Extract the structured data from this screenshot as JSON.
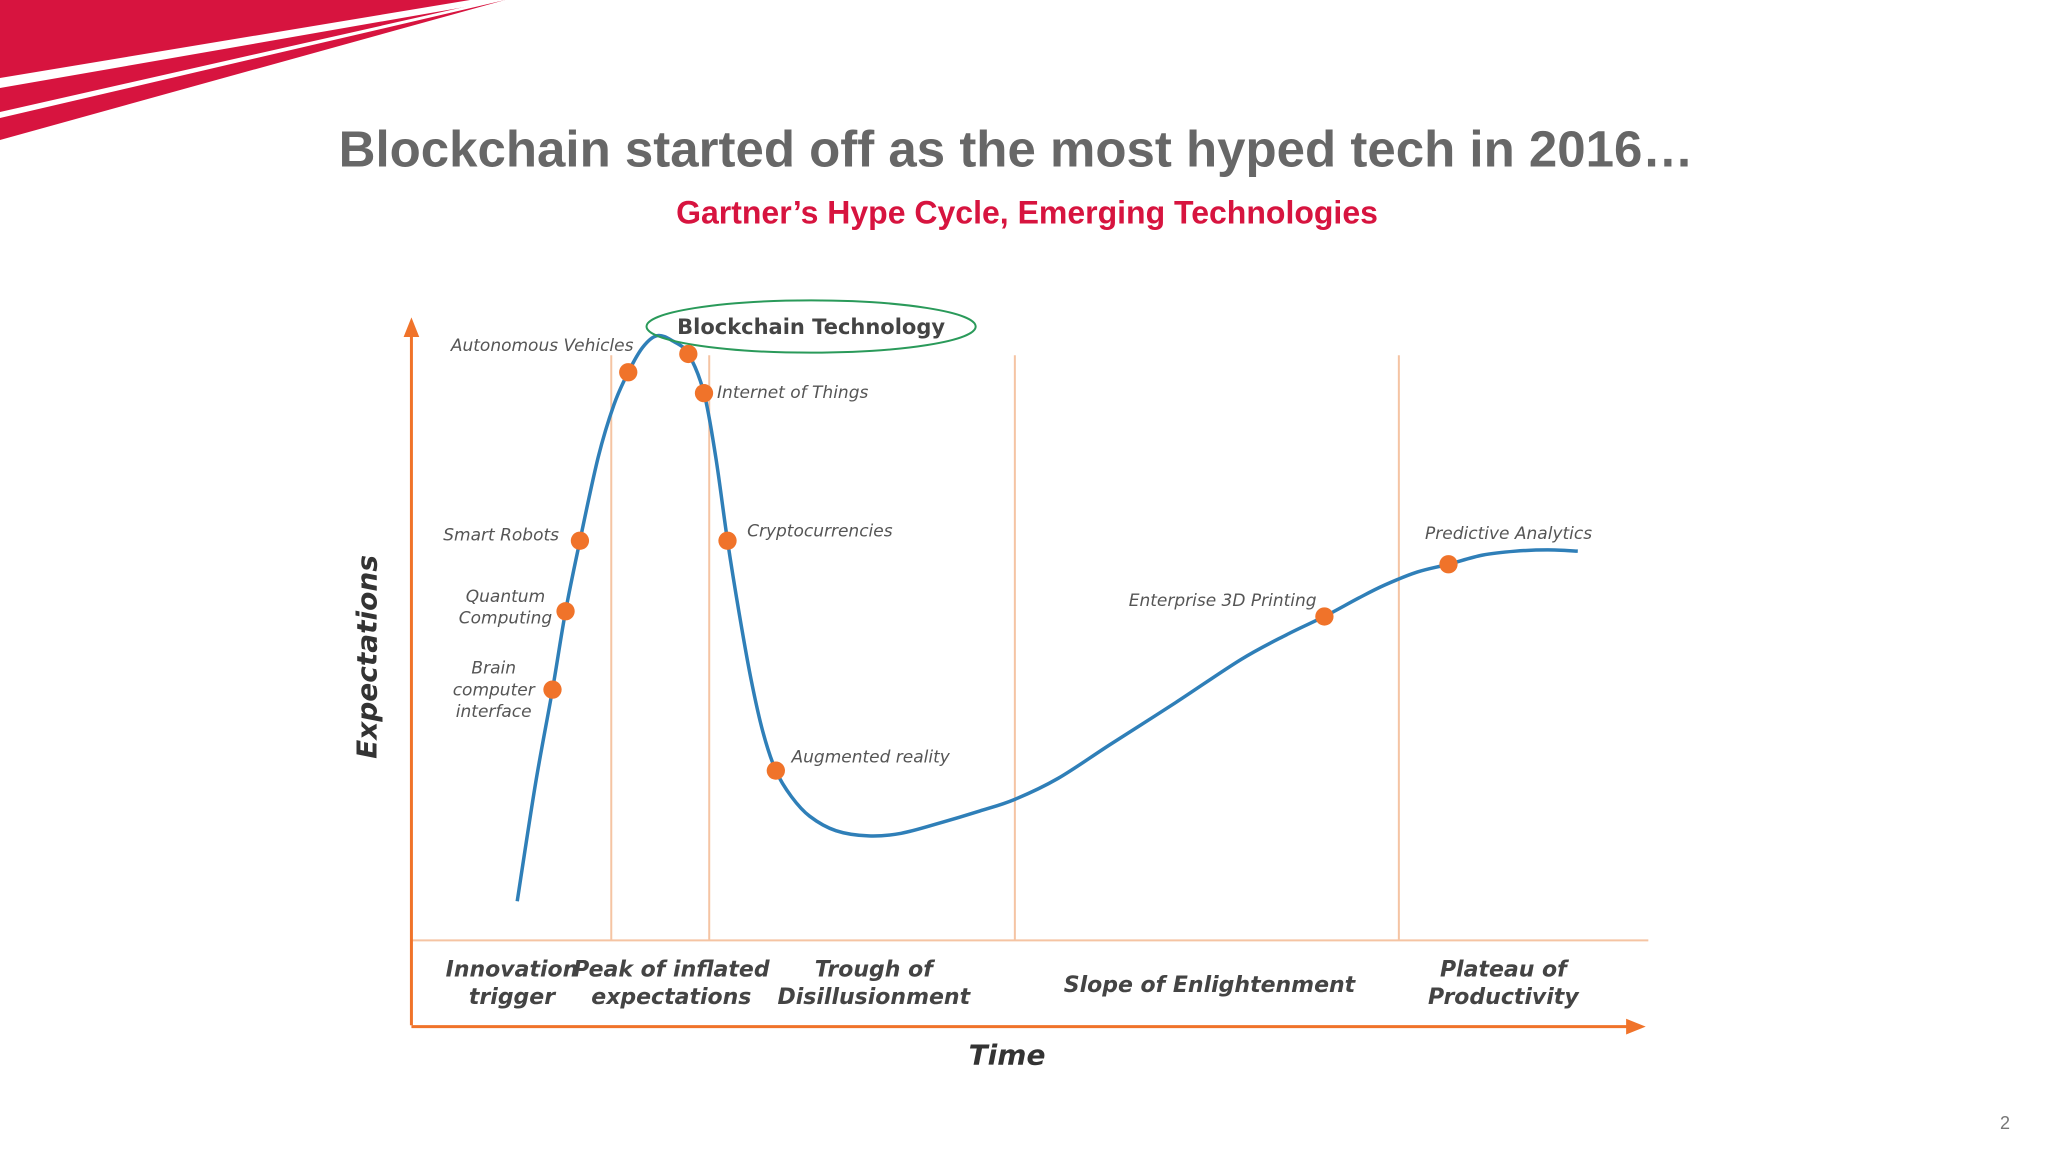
{
  "header": {
    "title": "Blockchain started off as the most hyped tech in 2016…",
    "subtitle": "Gartner’s Hype Cycle, Emerging Technologies"
  },
  "diagram": {
    "y_axis_label": "Expectations",
    "x_axis_label": "Time",
    "highlight": "Blockchain Technology",
    "technologies": [
      [
        "Brain",
        "computer",
        "interface"
      ],
      [
        "Quantum",
        "Computing"
      ],
      [
        "Smart Robots"
      ],
      [
        "Autonomous Vehicles"
      ],
      [
        "Internet of Things"
      ],
      [
        "Cryptocurrencies"
      ],
      [
        "Augmented reality"
      ],
      [
        "Enterprise 3D Printing"
      ],
      [
        "Predictive Analytics"
      ]
    ],
    "phases": [
      [
        "Innovation",
        "trigger"
      ],
      [
        "Peak of inflated",
        "expectations"
      ],
      [
        "Trough of",
        "Disillusionment"
      ],
      [
        "Slope of Enlightenment"
      ],
      [
        "Plateau of",
        "Productivity"
      ]
    ]
  },
  "footer": {
    "page_number": "2"
  }
}
